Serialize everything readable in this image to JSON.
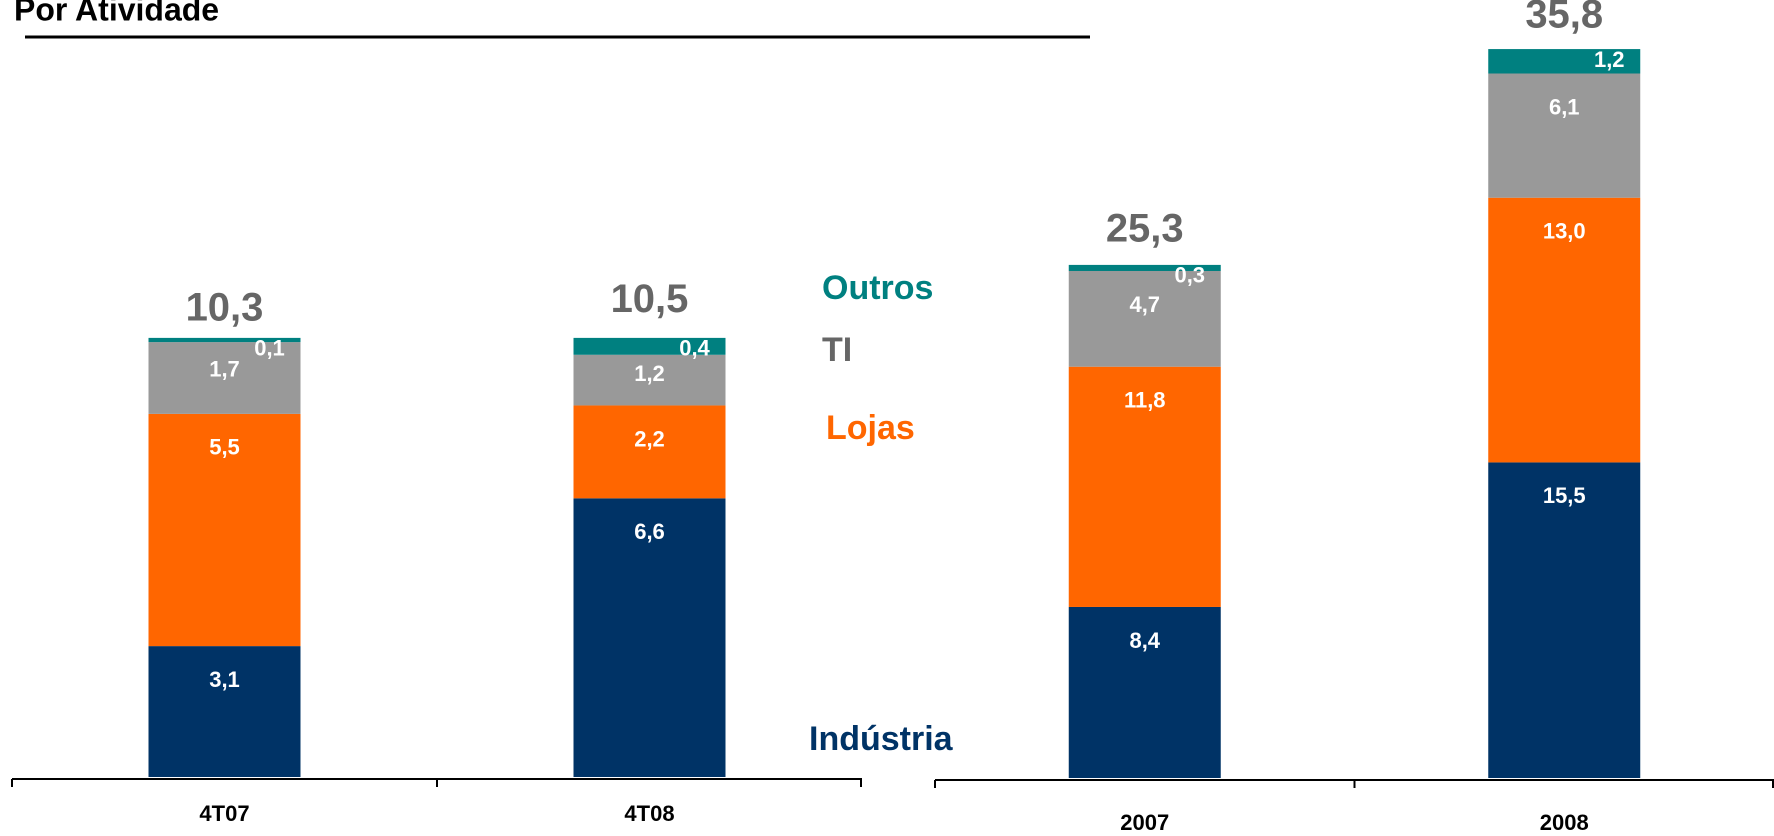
{
  "chart_data": [
    {
      "type": "stacked_bar",
      "title": "Por Atividade",
      "categories": [
        "4T07",
        "4T08"
      ],
      "series": [
        {
          "name": "Indústria",
          "color": "#003366",
          "values": [
            3.1,
            6.6
          ],
          "value_labels": [
            "3,1",
            "6,6"
          ]
        },
        {
          "name": "Lojas",
          "color": "#ff6600",
          "values": [
            5.5,
            2.2
          ],
          "value_labels": [
            "5,5",
            "2,2"
          ]
        },
        {
          "name": "TI",
          "color": "#999999",
          "values": [
            1.7,
            1.2
          ],
          "value_labels": [
            "1,7",
            "1,2"
          ]
        },
        {
          "name": "Outros",
          "color": "#008080",
          "values": [
            0.1,
            0.4
          ],
          "value_labels": [
            "0,1",
            "0,4"
          ]
        }
      ],
      "totals": [
        10.3,
        10.5
      ],
      "total_labels": [
        "10,3",
        "10,5"
      ],
      "ylim": [
        0,
        18
      ]
    },
    {
      "type": "stacked_bar",
      "categories": [
        "2007",
        "2008"
      ],
      "series": [
        {
          "color": "#003366",
          "values": [
            8.4,
            15.5
          ],
          "value_labels": [
            "8,4",
            "15,5"
          ]
        },
        {
          "color": "#ff6600",
          "values": [
            11.8,
            13.0
          ],
          "value_labels": [
            "11,8",
            "13,0"
          ]
        },
        {
          "color": "#999999",
          "values": [
            4.7,
            6.1
          ],
          "value_labels": [
            "4,7",
            "6,1"
          ]
        },
        {
          "color": "#008080",
          "values": [
            0.3,
            1.2
          ],
          "value_labels": [
            "0,3",
            "1,2"
          ]
        }
      ],
      "totals": [
        25.3,
        35.8
      ],
      "total_labels": [
        "25,3",
        "35,8"
      ],
      "ylim": [
        0,
        36
      ]
    }
  ]
}
